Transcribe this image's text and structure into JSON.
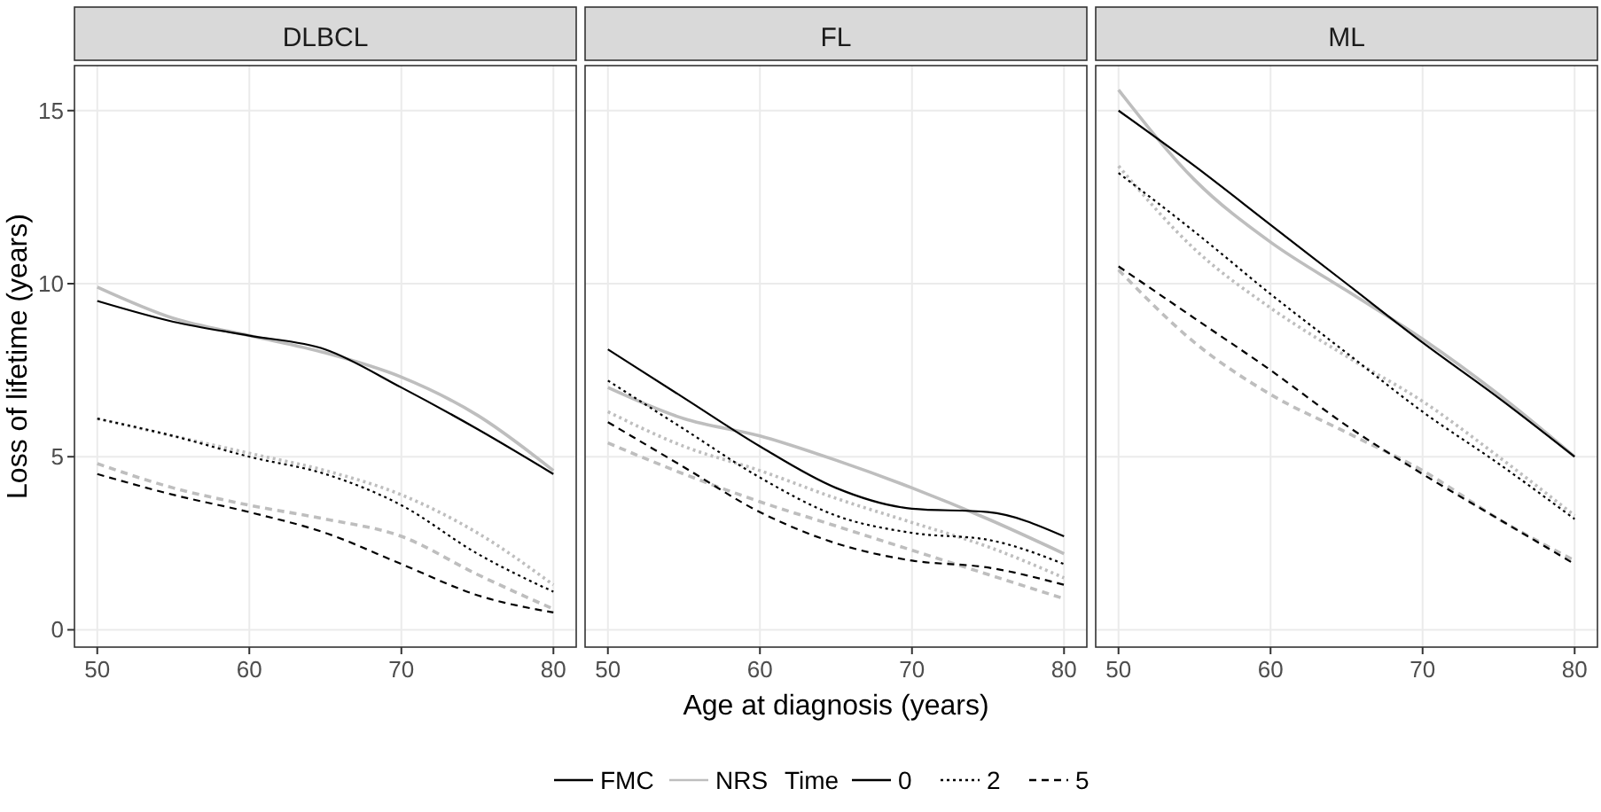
{
  "chart_data": [
    {
      "type": "line",
      "title": "DLBCL",
      "ylabel": "Loss of lifetime (years)",
      "x": [
        50,
        55,
        60,
        65,
        70,
        75,
        80
      ],
      "xlim": [
        48.5,
        81.5
      ],
      "xticks": [
        50,
        60,
        70,
        80
      ],
      "ylim": [
        -0.5,
        16.3
      ],
      "yticks": [
        0,
        5,
        10,
        15
      ],
      "grid": true,
      "series": [
        {
          "color": "#000000",
          "line_style": "solid",
          "values": [
            9.5,
            8.9,
            8.5,
            8.1,
            7.0,
            5.8,
            4.5
          ]
        },
        {
          "color": "#bebebe",
          "line_style": "solid",
          "values": [
            9.9,
            9.0,
            8.5,
            8.0,
            7.3,
            6.2,
            4.6
          ]
        },
        {
          "color": "#000000",
          "line_style": "dotted",
          "values": [
            6.1,
            5.6,
            5.0,
            4.5,
            3.6,
            2.2,
            1.1
          ]
        },
        {
          "color": "#bebebe",
          "line_style": "dotted",
          "values": [
            6.1,
            5.6,
            5.1,
            4.6,
            3.9,
            2.8,
            1.3
          ]
        },
        {
          "color": "#000000",
          "line_style": "dashed",
          "values": [
            4.5,
            3.9,
            3.4,
            2.8,
            1.9,
            1.0,
            0.5
          ]
        },
        {
          "color": "#bebebe",
          "line_style": "dashed",
          "values": [
            4.8,
            4.1,
            3.6,
            3.2,
            2.7,
            1.6,
            0.6
          ]
        }
      ]
    },
    {
      "type": "line",
      "title": "FL",
      "xlabel": "Age at diagnosis (years)",
      "x": [
        50,
        55,
        60,
        65,
        70,
        75,
        80
      ],
      "xlim": [
        48.5,
        81.5
      ],
      "xticks": [
        50,
        60,
        70,
        80
      ],
      "ylim": [
        -0.5,
        16.3
      ],
      "yticks": [
        0,
        5,
        10,
        15
      ],
      "grid": true,
      "tick_labels": "x",
      "series": [
        {
          "color": "#000000",
          "line_style": "solid",
          "values": [
            8.1,
            6.7,
            5.3,
            4.1,
            3.5,
            3.4,
            2.7
          ]
        },
        {
          "color": "#bebebe",
          "line_style": "solid",
          "values": [
            7.0,
            6.1,
            5.6,
            4.9,
            4.1,
            3.2,
            2.2
          ]
        },
        {
          "color": "#000000",
          "line_style": "dotted",
          "values": [
            7.2,
            5.8,
            4.4,
            3.3,
            2.8,
            2.6,
            1.9
          ]
        },
        {
          "color": "#bebebe",
          "line_style": "dotted",
          "values": [
            6.3,
            5.3,
            4.6,
            3.8,
            3.1,
            2.4,
            1.5
          ]
        },
        {
          "color": "#000000",
          "line_style": "dashed",
          "values": [
            6.0,
            4.7,
            3.4,
            2.5,
            2.0,
            1.8,
            1.3
          ]
        },
        {
          "color": "#bebebe",
          "line_style": "dashed",
          "values": [
            5.4,
            4.5,
            3.7,
            3.0,
            2.3,
            1.6,
            0.9
          ]
        }
      ]
    },
    {
      "type": "line",
      "title": "ML",
      "x": [
        50,
        55,
        60,
        65,
        70,
        75,
        80
      ],
      "xlim": [
        48.5,
        81.5
      ],
      "xticks": [
        50,
        60,
        70,
        80
      ],
      "ylim": [
        -0.5,
        16.3
      ],
      "yticks": [
        0,
        5,
        10,
        15
      ],
      "grid": true,
      "tick_labels": "x",
      "series": [
        {
          "color": "#000000",
          "line_style": "solid",
          "values": [
            15.0,
            13.4,
            11.7,
            10.0,
            8.3,
            6.7,
            5.0
          ]
        },
        {
          "color": "#bebebe",
          "line_style": "solid",
          "values": [
            15.6,
            13.0,
            11.2,
            9.8,
            8.4,
            6.8,
            5.0
          ]
        },
        {
          "color": "#000000",
          "line_style": "dotted",
          "values": [
            13.2,
            11.5,
            9.7,
            8.0,
            6.3,
            4.8,
            3.2
          ]
        },
        {
          "color": "#bebebe",
          "line_style": "dotted",
          "values": [
            13.4,
            11.0,
            9.3,
            7.9,
            6.6,
            5.0,
            3.3
          ]
        },
        {
          "color": "#000000",
          "line_style": "dashed",
          "values": [
            10.5,
            9.0,
            7.5,
            5.9,
            4.5,
            3.2,
            1.9
          ]
        },
        {
          "color": "#bebebe",
          "line_style": "dashed",
          "values": [
            10.4,
            8.3,
            6.8,
            5.7,
            4.6,
            3.2,
            2.0
          ]
        }
      ]
    },
    {
      "type": "other",
      "legend": "bottom",
      "legend_title": "Time",
      "series": [
        {
          "name": "FMC",
          "color": "#000000",
          "line_style": "solid"
        },
        {
          "name": "NRS",
          "color": "#bebebe",
          "line_style": "solid"
        },
        {
          "name": "0",
          "color": "#000000",
          "line_style": "solid"
        },
        {
          "name": "2",
          "color": "#000000",
          "line_style": "dotted"
        },
        {
          "name": "5",
          "color": "#000000",
          "line_style": "dashed"
        }
      ]
    }
  ]
}
